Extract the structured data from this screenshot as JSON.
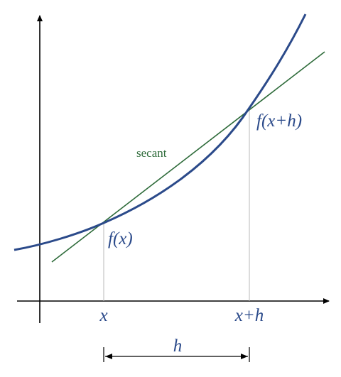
{
  "labels": {
    "point_a": "f(x)",
    "point_b": "f(x+h)",
    "line_name": "secant",
    "tick_a": "x",
    "tick_b": "x+h",
    "interval": "h"
  },
  "colors": {
    "curve": "#2b4a8a",
    "secant": "#2e6b3a",
    "axes": "#000000",
    "guides": "#b8b8b8",
    "math_text": "#2b4a8a",
    "secant_text": "#2e6b3a"
  }
}
